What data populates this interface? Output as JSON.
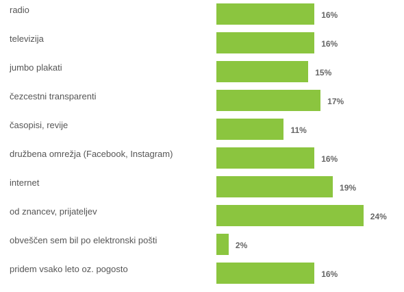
{
  "chart_data": {
    "type": "bar",
    "orientation": "horizontal",
    "categories": [
      "radio",
      "televizija",
      "jumbo plakati",
      "čezcestni transparenti",
      "časopisi, revije",
      "družbena omrežja (Facebook, Instagram)",
      "internet",
      "od znancev, prijateljev",
      "obveščen sem bil po elektronski pošti",
      "pridem vsako leto oz. pogosto"
    ],
    "values": [
      16,
      16,
      15,
      17,
      11,
      16,
      19,
      24,
      2,
      16
    ],
    "value_labels": [
      "16%",
      "16%",
      "15%",
      "17%",
      "11%",
      "16%",
      "19%",
      "24%",
      "2%",
      "16%"
    ],
    "unit": "%",
    "bar_color": "#8bc53f",
    "grid": false,
    "legend": "none"
  }
}
